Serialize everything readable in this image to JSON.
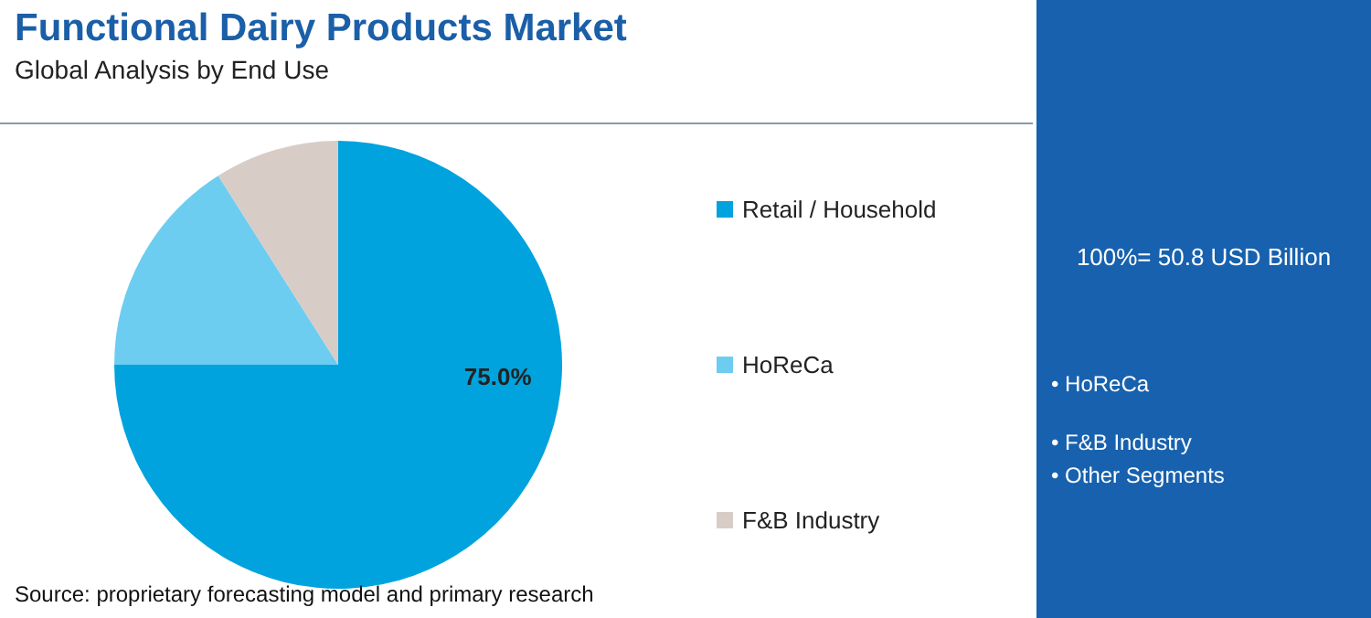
{
  "chart_data": {
    "type": "pie",
    "title": "Functional Dairy Products Market",
    "subtitle": "Global Analysis by End Use",
    "categories": [
      "Retail / Household",
      "HoReCa",
      "F&B Industry"
    ],
    "values": [
      75,
      16,
      9
    ],
    "colors": [
      "#00a3dd",
      "#6ccdf0",
      "#d8ccc6"
    ],
    "value_labels": [
      "75.0%",
      null,
      null
    ],
    "legend": "right",
    "annotations": [
      "100%= 50.8 USD Billion",
      "• HoReCa",
      "• F&B Industry",
      "• Other Segments",
      "Source: proprietary forecasting model and primary research"
    ]
  }
}
